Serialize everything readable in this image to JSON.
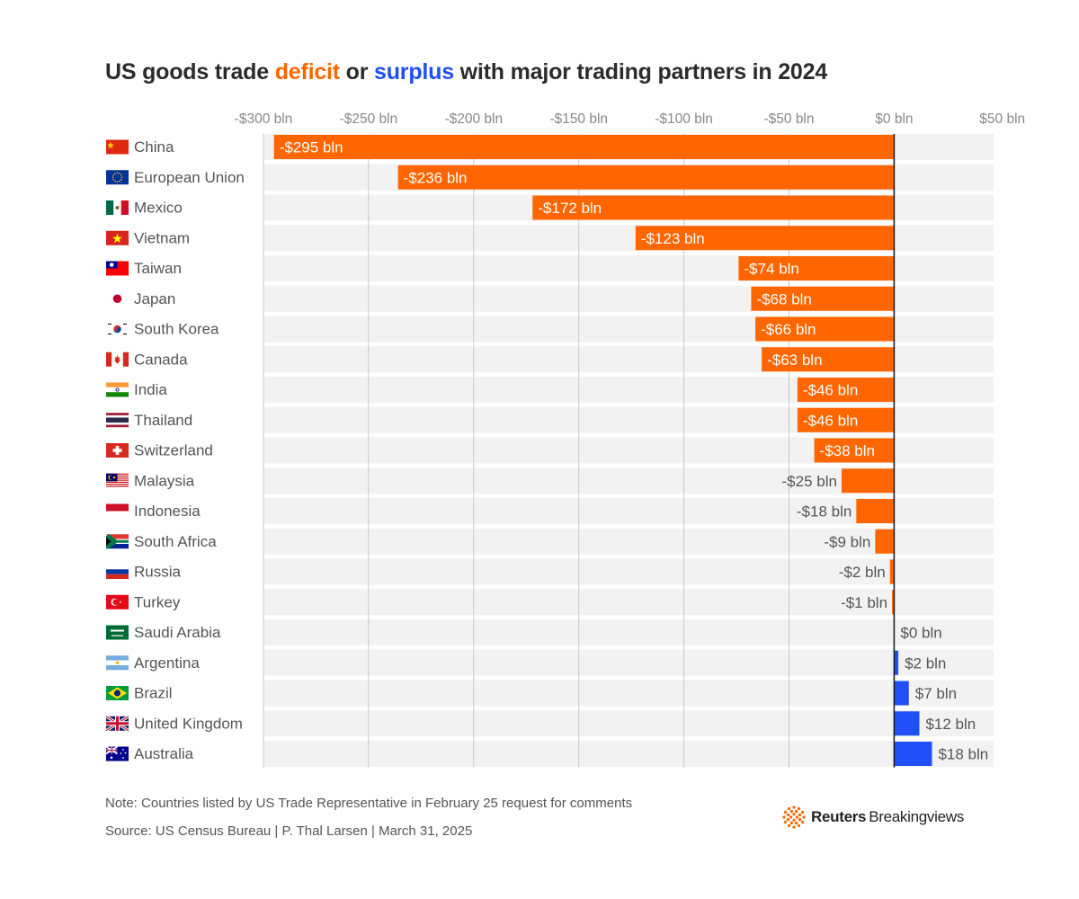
{
  "title": {
    "prefix": "US goods trade ",
    "deficit_word": "deficit",
    "middle": " or ",
    "surplus_word": "surplus",
    "suffix": " with major trading partners in 2024"
  },
  "colors": {
    "deficit": "#ff6600",
    "surplus": "#1f4ff5",
    "row_band": "#f2f2f2",
    "gridline": "#c8c8c8",
    "zero_line": "#222222"
  },
  "chart_data": {
    "type": "bar",
    "orientation": "horizontal",
    "title": "US goods trade deficit or surplus with major trading partners in 2024",
    "xlim": [
      -300,
      50
    ],
    "x_ticks": [
      -300,
      -250,
      -200,
      -150,
      -100,
      -50,
      0,
      50
    ],
    "x_tick_labels": [
      "-$300 bln",
      "-$250 bln",
      "-$200 bln",
      "-$150 bln",
      "-$100 bln",
      "-$50 bln",
      "$0 bln",
      "$50 bln"
    ],
    "grid": true,
    "categories": [
      "China",
      "European Union",
      "Mexico",
      "Vietnam",
      "Taiwan",
      "Japan",
      "South Korea",
      "Canada",
      "India",
      "Thailand",
      "Switzerland",
      "Malaysia",
      "Indonesia",
      "South Africa",
      "Russia",
      "Turkey",
      "Saudi Arabia",
      "Argentina",
      "Brazil",
      "United Kingdom",
      "Australia"
    ],
    "values": [
      -295,
      -236,
      -172,
      -123,
      -74,
      -68,
      -66,
      -63,
      -46,
      -46,
      -38,
      -25,
      -18,
      -9,
      -2,
      -1,
      0,
      2,
      7,
      12,
      18
    ],
    "data_labels": [
      "-$295 bln",
      "-$236 bln",
      "-$172 bln",
      "-$123 bln",
      "-$74 bln",
      "-$68 bln",
      "-$66 bln",
      "-$63 bln",
      "-$46 bln",
      "-$46 bln",
      "-$38 bln",
      "-$25 bln",
      "-$18 bln",
      "-$9 bln",
      "-$2 bln",
      "-$1 bln",
      "$0 bln",
      "$2 bln",
      "$7 bln",
      "$12 bln",
      "$18 bln"
    ],
    "flags": [
      "china-flag-icon",
      "eu-flag-icon",
      "mexico-flag-icon",
      "vietnam-flag-icon",
      "taiwan-flag-icon",
      "japan-flag-icon",
      "south-korea-flag-icon",
      "canada-flag-icon",
      "india-flag-icon",
      "thailand-flag-icon",
      "switzerland-flag-icon",
      "malaysia-flag-icon",
      "indonesia-flag-icon",
      "south-africa-flag-icon",
      "russia-flag-icon",
      "turkey-flag-icon",
      "saudi-arabia-flag-icon",
      "argentina-flag-icon",
      "brazil-flag-icon",
      "united-kingdom-flag-icon",
      "australia-flag-icon"
    ]
  },
  "footer": {
    "note": "Note: Countries listed by US Trade Representative in February 25 request for comments",
    "source": "Source: US Census Bureau | P. Thal Larsen | March 31, 2025",
    "logo_bold": "Reuters",
    "logo_regular": "Breakingviews",
    "logo_icon": "reuters-dots-icon"
  }
}
